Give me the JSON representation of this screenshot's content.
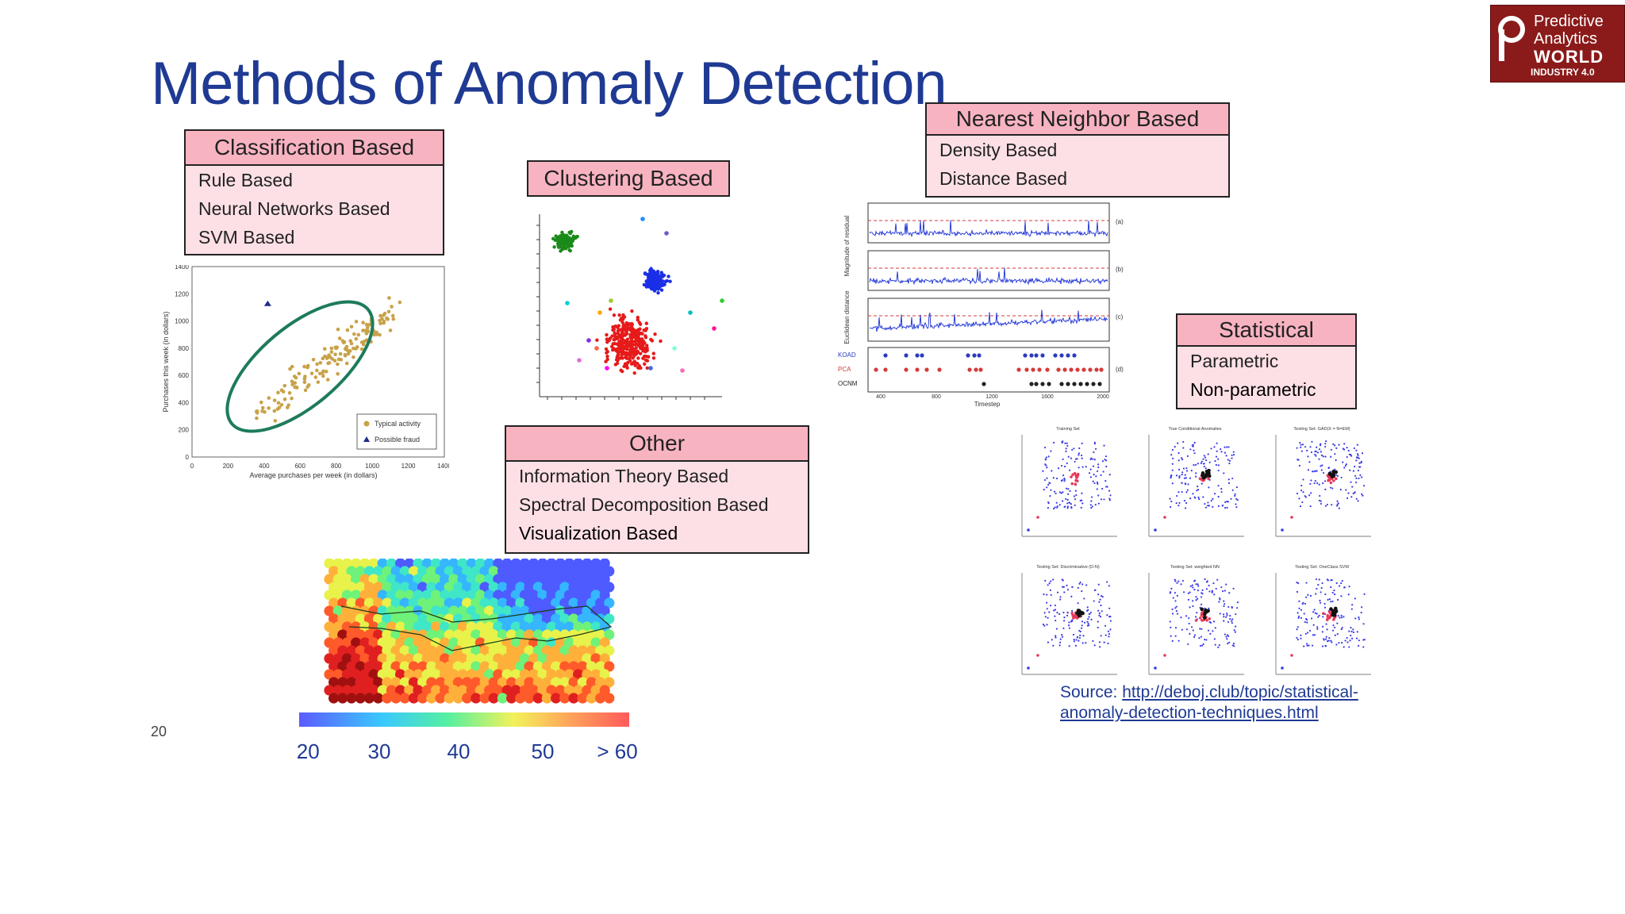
{
  "slide": {
    "title": "Methods of Anomaly Detection",
    "page_number": "20"
  },
  "logo": {
    "line1": "Predictive",
    "line2": "Analytics",
    "line3": "WORLD",
    "line4": "INDUSTRY 4.0",
    "color": "#8b1a1a"
  },
  "classification": {
    "header": "Classification Based",
    "items": [
      "Rule Based",
      "Neural Networks Based",
      "SVM Based"
    ]
  },
  "clustering": {
    "header": "Clustering Based"
  },
  "nearest_neighbor": {
    "header": "Nearest Neighbor Based",
    "items": [
      "Density Based",
      "Distance Based"
    ]
  },
  "statistical": {
    "header": "Statistical",
    "items": [
      "Parametric",
      "Non-parametric"
    ]
  },
  "other": {
    "header": "Other",
    "items": [
      "Information Theory Based",
      "Spectral Decomposition Based",
      "Visualization Based"
    ]
  },
  "source": {
    "label": "Source: ",
    "link_line1": "http://deboj.club/topic/statistical-",
    "link_line2": "anomaly-detection-techniques.html"
  },
  "colors": {
    "title": "#1f3a93",
    "box_header": "#f8b3c1",
    "box_body": "#fde0e6"
  },
  "chart_data": [
    {
      "type": "scatter",
      "id": "classification-scatter",
      "xlabel": "Average purchases per week (in dollars)",
      "ylabel": "Purchases this week (in dollars)",
      "xlim": [
        0,
        1400
      ],
      "ylim": [
        0,
        1400
      ],
      "x_ticks": [
        "0",
        "200",
        "400",
        "600",
        "800",
        "1000",
        "1200",
        "1400"
      ],
      "y_ticks": [
        "0",
        "200",
        "400",
        "600",
        "800",
        "1000",
        "1200",
        "1400"
      ],
      "legend": [
        "Typical activity",
        "Possible fraud"
      ],
      "legend_position": "bottom-right",
      "colors": {
        "typical": "#c8a24a",
        "fraud": "#1f2a8a",
        "ellipse": "#1e7b5a"
      }
    },
    {
      "type": "scatter",
      "id": "clustering-scatter",
      "clusters": [
        "green",
        "blue",
        "red"
      ]
    },
    {
      "type": "line",
      "id": "nearest-neighbor-timeseries",
      "xlabel": "Timestep",
      "x_ticks": [
        "400",
        "800",
        "1200",
        "1600",
        "2000"
      ],
      "ylabel_a": "Magnitude of residual",
      "ylabel_b": "Euclidean distance",
      "panel_labels": [
        "(a)",
        "(b)",
        "(c)",
        "(d)"
      ],
      "series": [
        {
          "name": "KOAD"
        },
        {
          "name": "PCA"
        },
        {
          "name": "OCNM"
        }
      ]
    },
    {
      "type": "heatmap",
      "id": "visualization-som",
      "colorbar_ticks": [
        "< 20",
        "30",
        "40",
        "50",
        "> 60"
      ]
    },
    {
      "type": "scatter",
      "id": "statistical-grid",
      "panel_titles": [
        "Training Set",
        "True Conditional Anomalies",
        "Testing Set: GAD(X = N=EM)",
        "Testing Set: Discriminative (D-N)",
        "Testing Set: weighted NN",
        "Testing Set: OneClass SVM"
      ]
    }
  ]
}
